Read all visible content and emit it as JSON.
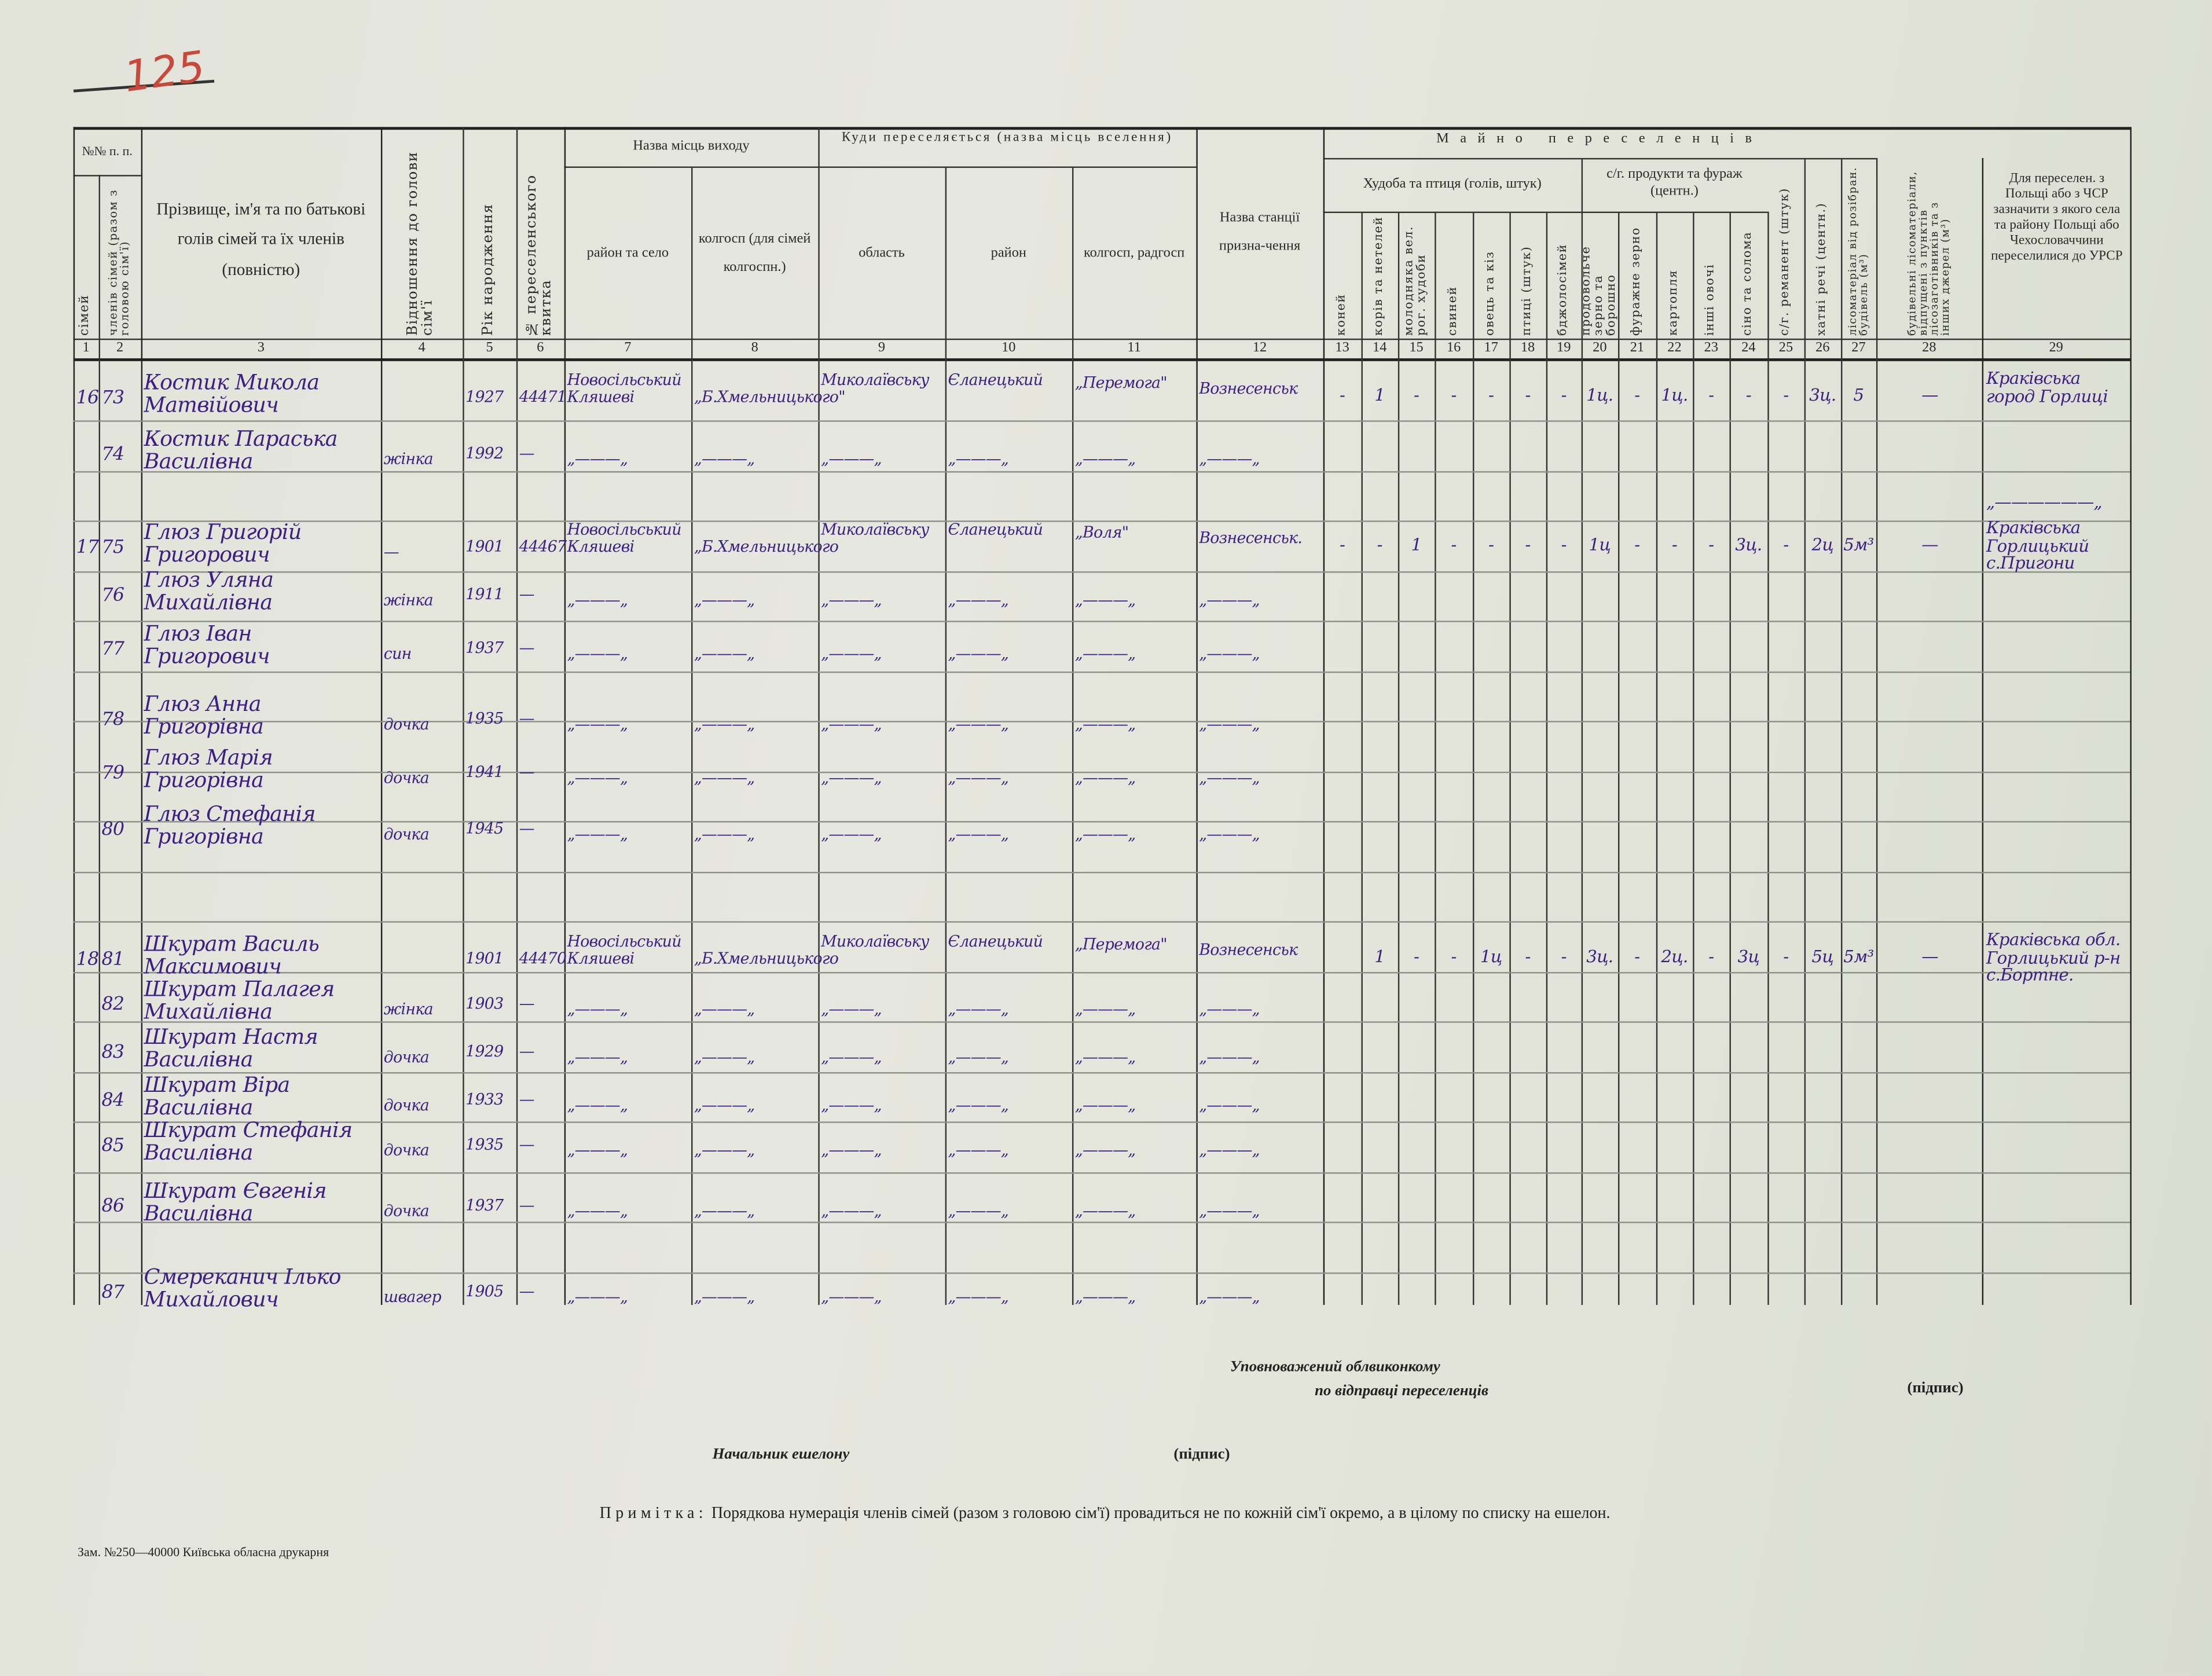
{
  "page_number_stamp": "125",
  "header": {
    "nn": "№№ п. п.",
    "col1": "сімей",
    "col2": "членів сімей (разом з головою сім'ї)",
    "col3": "Прізвище, ім'я та по батькові голів сімей та їх членів (повністю)",
    "col4": "Відношення до голови сім'ї",
    "col5": "Рік народження",
    "col6": "№ переселенського квитка",
    "group_exit": "Назва місць виходу",
    "col7": "район та село",
    "col8": "колгосп (для сімей колгоспн.)",
    "group_dest": "Куди переселяється (назва місць вселення)",
    "col9": "область",
    "col10": "район",
    "col11": "колгосп, радгосп",
    "col12": "Назва станції призна-чення",
    "group_property": "Майно переселенців",
    "group_livestock": "Худоба та птиця (голів, штук)",
    "group_products": "с/г. продукти та фураж (центн.)",
    "col13": "коней",
    "col14": "корів та нетелей",
    "col15": "молодняка вел. рог. худоби",
    "col16": "свиней",
    "col17": "овець та кіз",
    "col18": "птиці (штук)",
    "col19": "бджолосімей",
    "col20": "продовольче зерно та борошно",
    "col21": "фуражне зерно",
    "col22": "картопля",
    "col23": "інші овочі",
    "col24": "сіно та солома",
    "col25": "с/г. реманент (штук)",
    "col26": "хатні речі (центн.)",
    "col27": "лісоматеріал від розібран. будівель (м³)",
    "col28": "будівельні лісоматеріали, відпущені з пунктів лісозаготівників та з інших джерел (м³)",
    "col29": "Для переселен. з Польщі або з ЧСР зазначити з якого села та району Польщі або Чехословаччини переселилися до УРСР",
    "numbers": [
      "1",
      "2",
      "3",
      "4",
      "5",
      "6",
      "7",
      "8",
      "9",
      "10",
      "11",
      "12",
      "13",
      "14",
      "15",
      "16",
      "17",
      "18",
      "19",
      "20",
      "21",
      "22",
      "23",
      "24",
      "25",
      "26",
      "27",
      "28",
      "29"
    ]
  },
  "rows": [
    {
      "family": "16",
      "member": "73",
      "name": "Костик Микола Матвійович",
      "relation": "",
      "year": "1927",
      "ticket": "44471",
      "exit_village": "Новосільський Кляшеві",
      "exit_kolkhoz": "„Б.Хмельницького\"",
      "oblast": "Миколаївську",
      "raion": "Єланецький",
      "kolkhoz": "„Перемога\"",
      "station": "Вознесенськ",
      "property": [
        "-",
        "1",
        "-",
        "-",
        "-",
        "-",
        "-",
        "1ц.",
        "-",
        "1ц.",
        "-",
        "-",
        "-",
        "3ц.",
        "5"
      ],
      "col28": "—",
      "origin": "Краківська город Горлиці"
    },
    {
      "family": "",
      "member": "74",
      "name": "Костик Параська Василівна",
      "relation": "жінка",
      "year": "1992",
      "ticket": "—",
      "exit_village": "„———„",
      "exit_kolkhoz": "„———„",
      "oblast": "„———„",
      "raion": "„———„",
      "kolkhoz": "„———„",
      "station": "„———„",
      "property": [],
      "col28": "",
      "origin": "„——————„"
    },
    {
      "family": "17",
      "member": "75",
      "name": "Глюз Григорій Григорович",
      "relation": "—",
      "year": "1901",
      "ticket": "44467",
      "exit_village": "Новосільський Кляшеві",
      "exit_kolkhoz": "„Б.Хмельницького",
      "oblast": "Миколаївську",
      "raion": "Єланецький",
      "kolkhoz": "„Воля\"",
      "station": "Вознесенськ.",
      "property": [
        "-",
        "-",
        "1",
        "-",
        "-",
        "-",
        "-",
        "1ц",
        "-",
        "-",
        "-",
        "3ц.",
        "-",
        "2ц",
        "5м³"
      ],
      "col28": "—",
      "origin": "Краківська Горлицький с.Пригони"
    },
    {
      "family": "",
      "member": "76",
      "name": "Глюз Уляна Михайлівна",
      "relation": "жінка",
      "year": "1911",
      "ticket": "—",
      "exit_village": "„———„",
      "exit_kolkhoz": "„———„",
      "oblast": "„———„",
      "raion": "„———„",
      "kolkhoz": "„———„",
      "station": "„———„",
      "property": [],
      "col28": "",
      "origin": ""
    },
    {
      "family": "",
      "member": "77",
      "name": "Глюз Іван Григорович",
      "relation": "син",
      "year": "1937",
      "ticket": "—",
      "exit_village": "„———„",
      "exit_kolkhoz": "„———„",
      "oblast": "„———„",
      "raion": "„———„",
      "kolkhoz": "„———„",
      "station": "„———„",
      "property": [],
      "col28": "",
      "origin": ""
    },
    {
      "family": "",
      "member": "78",
      "name": "Глюз Анна Григорівна",
      "relation": "дочка",
      "year": "1935",
      "ticket": "—",
      "exit_village": "„———„",
      "exit_kolkhoz": "„———„",
      "oblast": "„———„",
      "raion": "„———„",
      "kolkhoz": "„———„",
      "station": "„———„",
      "property": [],
      "col28": "",
      "origin": ""
    },
    {
      "family": "",
      "member": "79",
      "name": "Глюз Марія Григорівна",
      "relation": "дочка",
      "year": "1941",
      "ticket": "—",
      "exit_village": "„———„",
      "exit_kolkhoz": "„———„",
      "oblast": "„———„",
      "raion": "„———„",
      "kolkhoz": "„———„",
      "station": "„———„",
      "property": [],
      "col28": "",
      "origin": ""
    },
    {
      "family": "",
      "member": "80",
      "name": "Глюз Стефанія Григорівна",
      "relation": "дочка",
      "year": "1945",
      "ticket": "—",
      "exit_village": "„———„",
      "exit_kolkhoz": "„———„",
      "oblast": "„———„",
      "raion": "„———„",
      "kolkhoz": "„———„",
      "station": "„———„",
      "property": [],
      "col28": "",
      "origin": ""
    },
    {
      "family": "18",
      "member": "81",
      "name": "Шкурат Василь Максимович",
      "relation": "",
      "year": "1901",
      "ticket": "44470",
      "exit_village": "Новосільський Кляшеві",
      "exit_kolkhoz": "„Б.Хмельницького",
      "oblast": "Миколаївську",
      "raion": "Єланецький",
      "kolkhoz": "„Перемога\"",
      "station": "Вознесенськ",
      "property": [
        "",
        "1",
        "-",
        "-",
        "1ц",
        "-",
        "-",
        "3ц.",
        "-",
        "2ц.",
        "-",
        "3ц",
        "-",
        "5ц",
        "5м³"
      ],
      "col28": "—",
      "origin": "Краківська обл. Горлицький р-н с.Бортне."
    },
    {
      "family": "",
      "member": "82",
      "name": "Шкурат Палагея Михайлівна",
      "relation": "жінка",
      "year": "1903",
      "ticket": "—",
      "exit_village": "„———„",
      "exit_kolkhoz": "„———„",
      "oblast": "„———„",
      "raion": "„———„",
      "kolkhoz": "„———„",
      "station": "„———„",
      "property": [],
      "col28": "",
      "origin": ""
    },
    {
      "family": "",
      "member": "83",
      "name": "Шкурат Настя Василівна",
      "relation": "дочка",
      "year": "1929",
      "ticket": "—",
      "exit_village": "„———„",
      "exit_kolkhoz": "„———„",
      "oblast": "„———„",
      "raion": "„———„",
      "kolkhoz": "„———„",
      "station": "„———„",
      "property": [],
      "col28": "",
      "origin": ""
    },
    {
      "family": "",
      "member": "84",
      "name": "Шкурат Віра Василівна",
      "relation": "дочка",
      "year": "1933",
      "ticket": "—",
      "exit_village": "„———„",
      "exit_kolkhoz": "„———„",
      "oblast": "„———„",
      "raion": "„———„",
      "kolkhoz": "„———„",
      "station": "„———„",
      "property": [],
      "col28": "",
      "origin": ""
    },
    {
      "family": "",
      "member": "85",
      "name": "Шкурат Стефанія Василівна",
      "relation": "дочка",
      "year": "1935",
      "ticket": "—",
      "exit_village": "„———„",
      "exit_kolkhoz": "„———„",
      "oblast": "„———„",
      "raion": "„———„",
      "kolkhoz": "„———„",
      "station": "„———„",
      "property": [],
      "col28": "",
      "origin": ""
    },
    {
      "family": "",
      "member": "86",
      "name": "Шкурат Євгенія Василівна",
      "relation": "дочка",
      "year": "1937",
      "ticket": "—",
      "exit_village": "„———„",
      "exit_kolkhoz": "„———„",
      "oblast": "„———„",
      "raion": "„———„",
      "kolkhoz": "„———„",
      "station": "„———„",
      "property": [],
      "col28": "",
      "origin": ""
    },
    {
      "family": "",
      "member": "87",
      "name": "Смереканич Ілько Михайлович",
      "relation": "швагер",
      "year": "1905",
      "ticket": "—",
      "exit_village": "„———„",
      "exit_kolkhoz": "„———„",
      "oblast": "„———„",
      "raion": "„———„",
      "kolkhoz": "„———„",
      "station": "„———„",
      "property": [],
      "col28": "",
      "origin": ""
    }
  ],
  "footer": {
    "authorized_line1": "Уповноважений облвиконкому",
    "authorized_line2": "по відправці переселенців",
    "signature1": "(підпис)",
    "echelon_chief": "Начальник ешелону",
    "signature2": "(підпис)",
    "note_label": "Примітка:",
    "note_text": "Порядкова нумерація членів сімей (разом з головою сім'ї) провадиться не по кожній сім'ї окремо, а в цілому по списку на ешелон.",
    "printer": "Зам. №250—40000 Київська обласна друкарня"
  },
  "colors": {
    "ink": "#3d1e86",
    "stamp": "#c8493a",
    "paper": "#e3e5db"
  }
}
